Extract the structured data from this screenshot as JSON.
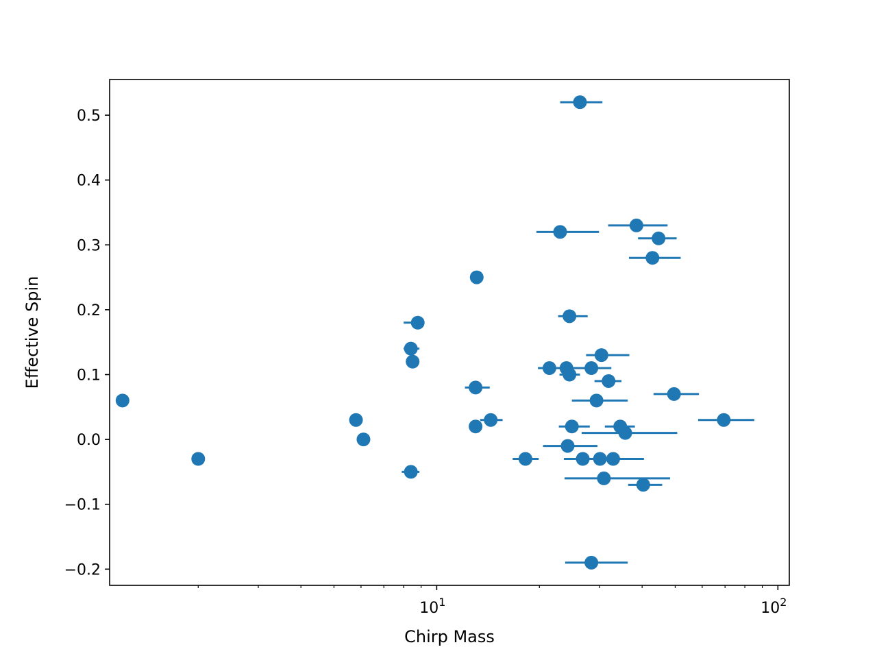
{
  "chart_data": {
    "type": "scatter",
    "title": "",
    "xlabel": "Chirp Mass",
    "ylabel": "Effective Spin",
    "xscale": "log",
    "xlim": [
      1.1,
      108
    ],
    "ylim": [
      -0.225,
      0.555
    ],
    "grid": false,
    "legend": "none",
    "color": "#1f77b4",
    "x_ticks": [
      {
        "value": 10,
        "base": "10",
        "exp": "1"
      },
      {
        "value": 100,
        "base": "10",
        "exp": "2"
      }
    ],
    "y_ticks": [
      {
        "value": -0.2,
        "label": "−0.2"
      },
      {
        "value": -0.1,
        "label": "−0.1"
      },
      {
        "value": 0.0,
        "label": "0.0"
      },
      {
        "value": 0.1,
        "label": "0.1"
      },
      {
        "value": 0.2,
        "label": "0.2"
      },
      {
        "value": 0.3,
        "label": "0.3"
      },
      {
        "value": 0.4,
        "label": "0.4"
      },
      {
        "value": 0.5,
        "label": "0.5"
      }
    ],
    "points": [
      {
        "x": 1.2,
        "y": 0.06
      },
      {
        "x": 2.0,
        "y": -0.03
      },
      {
        "x": 5.8,
        "y": 0.03
      },
      {
        "x": 6.1,
        "y": 0.0
      },
      {
        "x": 8.4,
        "y": 0.14,
        "xerr": [
          8.0,
          8.9
        ]
      },
      {
        "x": 8.5,
        "y": 0.12
      },
      {
        "x": 8.8,
        "y": 0.18,
        "xerr": [
          8.0,
          9.0
        ]
      },
      {
        "x": 8.4,
        "y": -0.05,
        "xerr": [
          7.9,
          8.9
        ]
      },
      {
        "x": 13.1,
        "y": 0.25
      },
      {
        "x": 13.0,
        "y": 0.08,
        "xerr": [
          12.1,
          14.3
        ]
      },
      {
        "x": 13.0,
        "y": 0.02
      },
      {
        "x": 14.4,
        "y": 0.03,
        "xerr": [
          13.4,
          15.6
        ]
      },
      {
        "x": 18.2,
        "y": -0.03,
        "xerr": [
          16.7,
          19.9
        ]
      },
      {
        "x": 21.4,
        "y": 0.11,
        "xerr": [
          19.8,
          23.1
        ]
      },
      {
        "x": 23.0,
        "y": 0.32,
        "xerr": [
          19.6,
          29.9
        ]
      },
      {
        "x": 24.0,
        "y": 0.11,
        "xerr": [
          22.0,
          26.1
        ]
      },
      {
        "x": 24.5,
        "y": 0.19,
        "xerr": [
          22.7,
          27.7
        ]
      },
      {
        "x": 24.5,
        "y": 0.1,
        "xerr": [
          22.9,
          26.3
        ]
      },
      {
        "x": 24.9,
        "y": 0.02,
        "xerr": [
          22.8,
          28.1
        ]
      },
      {
        "x": 24.2,
        "y": -0.01,
        "xerr": [
          20.5,
          29.6
        ]
      },
      {
        "x": 26.3,
        "y": 0.52,
        "xerr": [
          23.0,
          30.6
        ]
      },
      {
        "x": 26.8,
        "y": -0.03,
        "xerr": [
          23.6,
          30.2
        ]
      },
      {
        "x": 28.4,
        "y": 0.11,
        "xerr": [
          26.0,
          32.5
        ]
      },
      {
        "x": 28.4,
        "y": -0.19,
        "xerr": [
          23.8,
          36.3
        ]
      },
      {
        "x": 29.4,
        "y": 0.06,
        "xerr": [
          24.9,
          36.3
        ]
      },
      {
        "x": 30.4,
        "y": 0.13,
        "xerr": [
          27.4,
          36.7
        ]
      },
      {
        "x": 30.1,
        "y": -0.03,
        "xerr": [
          24.0,
          40.5
        ]
      },
      {
        "x": 30.9,
        "y": -0.06,
        "xerr": [
          23.7,
          48.3
        ]
      },
      {
        "x": 31.9,
        "y": 0.09,
        "xerr": [
          29.0,
          34.8
        ]
      },
      {
        "x": 32.9,
        "y": -0.03,
        "xerr": [
          27.8,
          38.8
        ]
      },
      {
        "x": 34.5,
        "y": 0.02,
        "xerr": [
          31.1,
          38.1
        ]
      },
      {
        "x": 35.7,
        "y": 0.01,
        "xerr": [
          26.6,
          50.7
        ]
      },
      {
        "x": 38.5,
        "y": 0.33,
        "xerr": [
          31.8,
          47.5
        ]
      },
      {
        "x": 40.3,
        "y": -0.07,
        "xerr": [
          36.4,
          45.8
        ]
      },
      {
        "x": 42.9,
        "y": 0.28,
        "xerr": [
          36.6,
          51.9
        ]
      },
      {
        "x": 44.7,
        "y": 0.31,
        "xerr": [
          38.9,
          50.5
        ]
      },
      {
        "x": 49.6,
        "y": 0.07,
        "xerr": [
          43.2,
          58.7
        ]
      },
      {
        "x": 69.4,
        "y": 0.03,
        "xerr": [
          58.4,
          85.3
        ]
      }
    ]
  }
}
